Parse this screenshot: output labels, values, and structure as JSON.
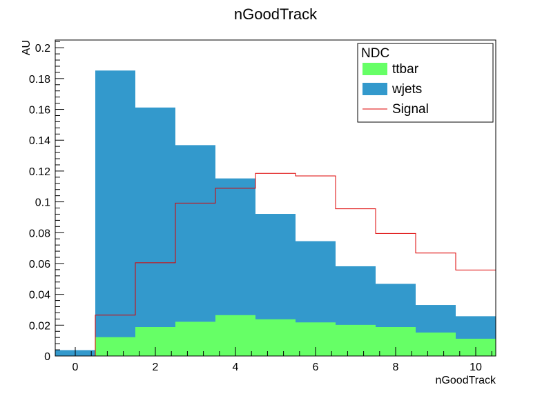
{
  "chart_data": {
    "type": "bar",
    "stacked": true,
    "title": "nGoodTrack",
    "xlabel": "nGoodTrack",
    "ylabel": "AU",
    "xlim": [
      -0.5,
      10.5
    ],
    "ylim": [
      0,
      0.205
    ],
    "x_ticks": [
      0,
      2,
      4,
      6,
      8,
      10
    ],
    "y_ticks": [
      0,
      0.02,
      0.04,
      0.06,
      0.08,
      0.1,
      0.12,
      0.14,
      0.16,
      0.18,
      0.2
    ],
    "y_tick_labels": [
      "0",
      "0.02",
      "0.04",
      "0.06",
      "0.08",
      "0.1",
      "0.12",
      "0.14",
      "0.16",
      "0.18",
      "0.2"
    ],
    "bin_centers": [
      0,
      1,
      2,
      3,
      4,
      5,
      6,
      7,
      8,
      9,
      10
    ],
    "series": [
      {
        "name": "ttbar",
        "style": "filled",
        "color": "#66ff66",
        "values": [
          0.0,
          0.0122,
          0.0188,
          0.0222,
          0.0265,
          0.0238,
          0.0218,
          0.0202,
          0.0188,
          0.0152,
          0.0112
        ]
      },
      {
        "name": "wjets",
        "style": "filled-stacked",
        "color": "#3399cc",
        "stack_totals": [
          0.0038,
          0.1852,
          0.1612,
          0.1368,
          0.1152,
          0.0922,
          0.0745,
          0.0582,
          0.0468,
          0.0331,
          0.0258
        ]
      },
      {
        "name": "Signal",
        "style": "step-line",
        "color": "#dd0000",
        "values": [
          0.0,
          0.0265,
          0.0605,
          0.0992,
          0.1088,
          0.1185,
          0.1168,
          0.0955,
          0.0795,
          0.0668,
          0.0558
        ]
      }
    ],
    "legend": {
      "title": "NDC",
      "placement": "top-right",
      "entries": [
        "ttbar",
        "wjets",
        "Signal"
      ]
    },
    "grid": false
  }
}
